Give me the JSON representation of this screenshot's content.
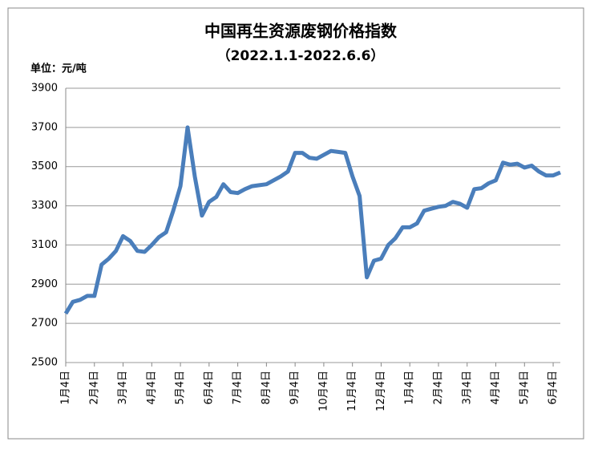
{
  "chart_data": {
    "type": "line",
    "title": "中国再生资源废钢价格指数",
    "subtitle": "（2022.1.1-2022.6.6）",
    "unit_label": "单位：元/吨",
    "categories": [
      "1月4日",
      null,
      null,
      null,
      "2月4日",
      null,
      null,
      null,
      "3月4日",
      null,
      null,
      null,
      "4月4日",
      null,
      null,
      null,
      "5月4日",
      null,
      null,
      null,
      "6月4日",
      null,
      null,
      null,
      "7月4日",
      null,
      null,
      null,
      "8月4日",
      null,
      null,
      null,
      "9月4日",
      null,
      null,
      null,
      "10月4日",
      null,
      null,
      null,
      "11月4日",
      null,
      null,
      null,
      "12月4日",
      null,
      null,
      null,
      "1月4日",
      null,
      null,
      null,
      "2月4日",
      null,
      null,
      null,
      "3月4日",
      null,
      null,
      null,
      "4月4日",
      null,
      null,
      null,
      "5月4日",
      null,
      null,
      null,
      "6月4日",
      null
    ],
    "series": [
      {
        "name": "废钢价格指数",
        "color": "#4a7ebb",
        "values": [
          2750,
          2810,
          2820,
          2840,
          2840,
          3000,
          3030,
          3070,
          3145,
          3120,
          3070,
          3065,
          3100,
          3140,
          3165,
          3275,
          3400,
          3700,
          3450,
          3250,
          3320,
          3345,
          3410,
          3370,
          3365,
          3385,
          3400,
          3405,
          3410,
          3430,
          3450,
          3475,
          3570,
          3570,
          3545,
          3540,
          3560,
          3580,
          3575,
          3570,
          3450,
          3350,
          2935,
          3020,
          3030,
          3100,
          3135,
          3190,
          3190,
          3210,
          3275,
          3285,
          3295,
          3300,
          3320,
          3310,
          3290,
          3385,
          3390,
          3415,
          3430,
          3520,
          3510,
          3515,
          3495,
          3505,
          3475,
          3455,
          3455,
          3470
        ]
      }
    ],
    "ylim": [
      2500,
      3900
    ],
    "yticks": [
      2500,
      2700,
      2900,
      3100,
      3300,
      3500,
      3700,
      3900
    ],
    "grid": true
  }
}
